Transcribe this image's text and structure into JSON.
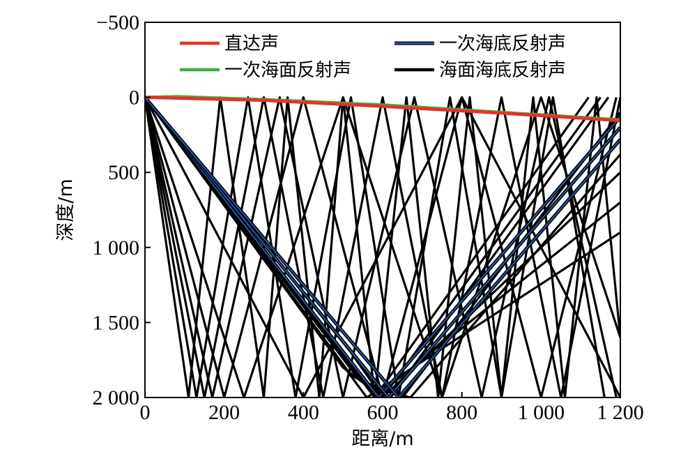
{
  "chart_data": {
    "type": "line",
    "xlabel": "距离/m",
    "ylabel": "深度/m",
    "xlim": [
      0,
      1200
    ],
    "ylim": [
      -500,
      2000
    ],
    "y_inverted": true,
    "grid": false,
    "legend_position": "top",
    "x_ticks": [
      {
        "value": 0,
        "label": "0"
      },
      {
        "value": 200,
        "label": "200"
      },
      {
        "value": 400,
        "label": "400"
      },
      {
        "value": 600,
        "label": "600"
      },
      {
        "value": 800,
        "label": "800"
      },
      {
        "value": 1000,
        "label": "1 000"
      },
      {
        "value": 1200,
        "label": "1 200"
      }
    ],
    "y_ticks": [
      {
        "value": -500,
        "label": "−500"
      },
      {
        "value": 0,
        "label": "0"
      },
      {
        "value": 500,
        "label": "500"
      },
      {
        "value": 1000,
        "label": "1 000"
      },
      {
        "value": 1500,
        "label": "1 500"
      },
      {
        "value": 2000,
        "label": "2 000"
      }
    ],
    "series": [
      {
        "name": "海面海底反射声",
        "color": "#000000",
        "lines": [
          [
            [
              0,
              0
            ],
            [
              110,
              2000
            ],
            [
              190,
              0
            ],
            [
              300,
              2000
            ],
            [
              360,
              0
            ],
            [
              440,
              2000
            ],
            [
              500,
              0
            ],
            [
              580,
              2000
            ],
            [
              660,
              0
            ],
            [
              740,
              2000
            ],
            [
              820,
              0
            ],
            [
              900,
              2000
            ],
            [
              980,
              0
            ],
            [
              1060,
              2000
            ],
            [
              1140,
              0
            ],
            [
              1200,
              1600
            ]
          ],
          [
            [
              0,
              0
            ],
            [
              130,
              2000
            ],
            [
              260,
              0
            ],
            [
              380,
              2000
            ],
            [
              520,
              0
            ],
            [
              640,
              2000
            ],
            [
              770,
              0
            ],
            [
              900,
              2000
            ],
            [
              1030,
              0
            ],
            [
              1160,
              2000
            ]
          ],
          [
            [
              0,
              0
            ],
            [
              150,
              2000
            ],
            [
              300,
              0
            ],
            [
              450,
              2000
            ],
            [
              600,
              0
            ],
            [
              750,
              2000
            ],
            [
              900,
              0
            ],
            [
              1050,
              2000
            ],
            [
              1200,
              0
            ]
          ],
          [
            [
              0,
              0
            ],
            [
              170,
              2000
            ],
            [
              340,
              0
            ],
            [
              500,
              2000
            ],
            [
              680,
              0
            ],
            [
              850,
              2000
            ],
            [
              1020,
              0
            ],
            [
              1190,
              2000
            ]
          ],
          [
            [
              0,
              0
            ],
            [
              200,
              2000
            ],
            [
              400,
              0
            ],
            [
              600,
              2000
            ],
            [
              800,
              0
            ],
            [
              1000,
              2000
            ],
            [
              1190,
              0
            ]
          ],
          [
            [
              0,
              0
            ],
            [
              250,
              2000
            ],
            [
              500,
              0
            ],
            [
              750,
              2000
            ],
            [
              1000,
              0
            ],
            [
              1200,
              1600
            ]
          ],
          [
            [
              0,
              0
            ],
            [
              400,
              2000
            ],
            [
              800,
              0
            ],
            [
              1200,
              2000
            ]
          ],
          [
            [
              0,
              0
            ],
            [
              500,
              1800
            ],
            [
              600,
              2000
            ],
            [
              1150,
              0
            ]
          ],
          [
            [
              0,
              0
            ],
            [
              520,
              1850
            ],
            [
              620,
              2000
            ],
            [
              1170,
              0
            ]
          ],
          [
            [
              0,
              0
            ],
            [
              540,
              1880
            ],
            [
              650,
              2000
            ],
            [
              1200,
              100
            ]
          ],
          [
            [
              0,
              0
            ],
            [
              560,
              1920
            ],
            [
              670,
              2000
            ],
            [
              1200,
              380
            ]
          ],
          [
            [
              0,
              0
            ],
            [
              580,
              2000
            ],
            [
              1120,
              0
            ]
          ],
          [
            [
              0,
              0
            ],
            [
              520,
              1700
            ],
            [
              600,
              2000
            ],
            [
              1200,
              500
            ]
          ],
          [
            [
              0,
              0
            ],
            [
              470,
              1600
            ],
            [
              580,
              2000
            ],
            [
              1200,
              700
            ]
          ],
          [
            [
              0,
              0
            ],
            [
              420,
              1500
            ],
            [
              560,
              2000
            ],
            [
              1200,
              900
            ]
          ]
        ]
      },
      {
        "name": "一次海底反射声",
        "color": "#2857a4",
        "lines": [
          [
            [
              0,
              0
            ],
            [
              590,
              2000
            ],
            [
              1200,
              130
            ]
          ],
          [
            [
              0,
              0
            ],
            [
              615,
              2000
            ],
            [
              1200,
              200
            ]
          ],
          [
            [
              0,
              0
            ],
            [
              640,
              2000
            ],
            [
              1200,
              280
            ]
          ]
        ]
      },
      {
        "name": "一次海面反射声",
        "color": "#3cb043",
        "lines": [
          [
            [
              0,
              0
            ],
            [
              80,
              -5
            ],
            [
              300,
              15
            ],
            [
              600,
              50
            ],
            [
              900,
              100
            ],
            [
              1200,
              150
            ]
          ]
        ]
      },
      {
        "name": "直达声",
        "color": "#e8302a",
        "lines": [
          [
            [
              0,
              0
            ],
            [
              300,
              20
            ],
            [
              600,
              60
            ],
            [
              900,
              105
            ],
            [
              1200,
              155
            ]
          ]
        ]
      }
    ],
    "legend": [
      {
        "name": "直达声",
        "color": "#e8302a"
      },
      {
        "name": "一次海底反射声",
        "color": "#2857a4"
      },
      {
        "name": "一次海面反射声",
        "color": "#3cb043"
      },
      {
        "name": "海面海底反射声",
        "color": "#000000"
      }
    ]
  }
}
